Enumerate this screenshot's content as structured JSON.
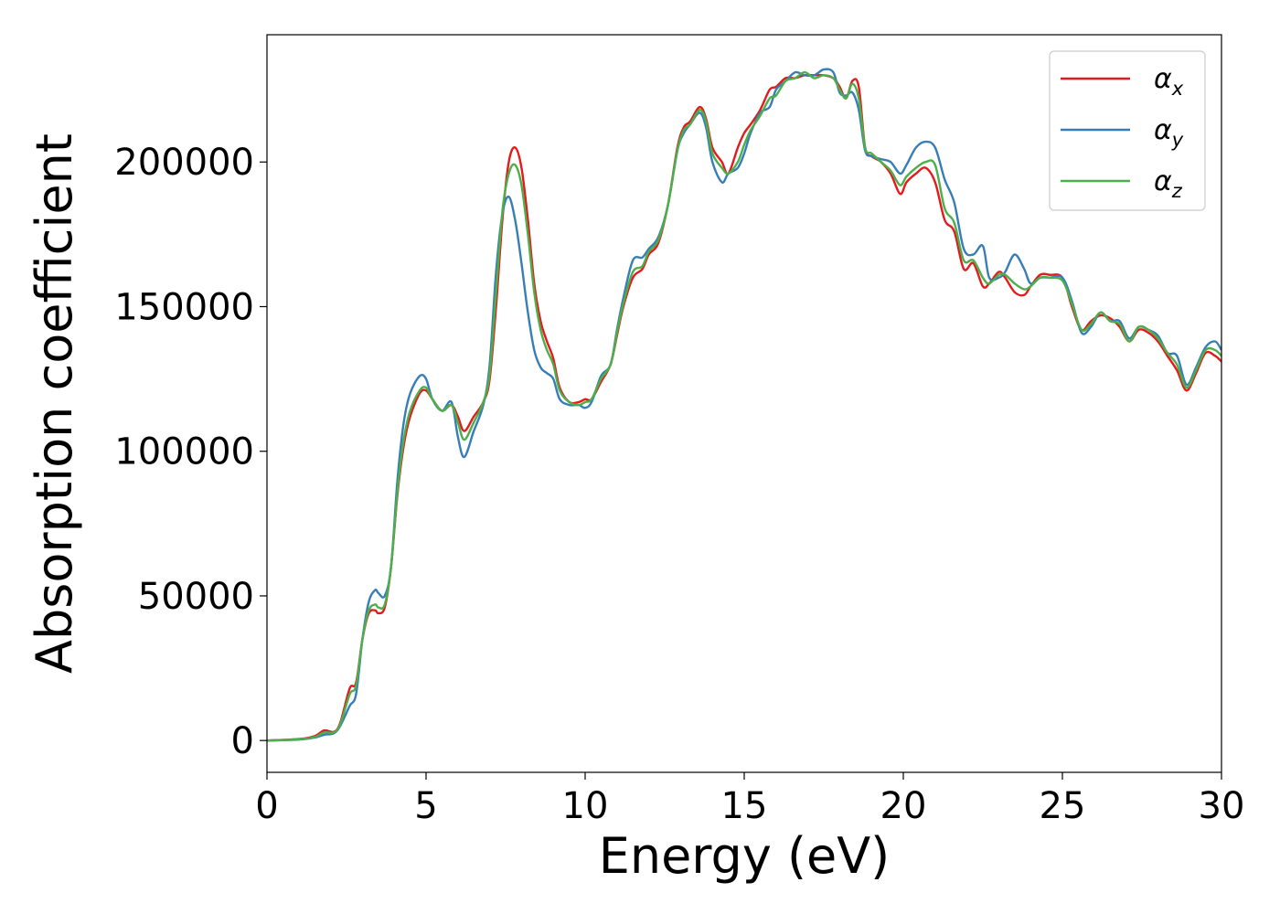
{
  "chart_data": {
    "type": "line",
    "title": "",
    "xlabel": "Energy (eV)",
    "ylabel": "Absorption coefficient",
    "xlim": [
      0,
      30
    ],
    "ylim": [
      -11000,
      244000
    ],
    "xticks": [
      0,
      5,
      10,
      15,
      20,
      25,
      30
    ],
    "yticks": [
      0,
      50000,
      100000,
      150000,
      200000
    ],
    "grid": false,
    "legend": "top-right",
    "series": [
      {
        "base": "α",
        "sub": "x",
        "color": "#e41a1c",
        "x": [
          0,
          1,
          1.5,
          1.8,
          2.1,
          2.3,
          2.6,
          2.8,
          3.0,
          3.2,
          3.4,
          3.5,
          3.7,
          3.9,
          4.1,
          4.3,
          4.5,
          4.8,
          5.0,
          5.2,
          5.5,
          5.8,
          6.0,
          6.2,
          6.5,
          6.8,
          7.0,
          7.2,
          7.4,
          7.6,
          7.8,
          8.0,
          8.2,
          8.4,
          8.6,
          8.8,
          9.0,
          9.2,
          9.5,
          9.8,
          10.0,
          10.2,
          10.5,
          10.8,
          11.0,
          11.2,
          11.5,
          11.8,
          12.0,
          12.3,
          12.6,
          12.9,
          13.1,
          13.3,
          13.6,
          13.8,
          14.0,
          14.3,
          14.5,
          14.8,
          15.0,
          15.2,
          15.5,
          15.8,
          16.0,
          16.3,
          16.6,
          16.9,
          17.2,
          17.5,
          17.8,
          18.0,
          18.2,
          18.4,
          18.6,
          18.8,
          19.0,
          19.3,
          19.6,
          19.9,
          20.1,
          20.4,
          20.7,
          21.0,
          21.3,
          21.6,
          21.9,
          22.2,
          22.5,
          22.7,
          23.0,
          23.2,
          23.5,
          23.8,
          24.0,
          24.3,
          24.6,
          25.0,
          25.3,
          25.6,
          25.9,
          26.2,
          26.5,
          26.8,
          27.1,
          27.4,
          27.7,
          28.0,
          28.3,
          28.6,
          28.9,
          29.2,
          29.5,
          29.8,
          30
        ],
        "y": [
          0,
          500,
          1500,
          3500,
          3000,
          6000,
          18000,
          20000,
          35000,
          44000,
          45000,
          44000,
          46000,
          60000,
          85000,
          102000,
          112000,
          120000,
          121000,
          118000,
          114000,
          116000,
          112000,
          107000,
          112000,
          117000,
          125000,
          150000,
          180000,
          200000,
          205000,
          198000,
          180000,
          158000,
          145000,
          138000,
          132000,
          122000,
          117000,
          117000,
          118000,
          118000,
          124000,
          130000,
          140000,
          150000,
          160000,
          163000,
          168000,
          172000,
          185000,
          205000,
          212000,
          214000,
          219000,
          215000,
          205000,
          200000,
          196000,
          205000,
          210000,
          213000,
          218000,
          225000,
          226000,
          229000,
          229000,
          230000,
          230000,
          230000,
          229000,
          226000,
          222000,
          228000,
          226000,
          205000,
          202000,
          200000,
          196000,
          189000,
          193000,
          196000,
          198000,
          193000,
          180000,
          176000,
          163000,
          165000,
          157000,
          158000,
          162000,
          160000,
          155000,
          154000,
          157000,
          161000,
          161000,
          160000,
          150000,
          142000,
          145000,
          147000,
          146000,
          143000,
          138000,
          142000,
          141000,
          138000,
          133000,
          128000,
          121000,
          127000,
          134000,
          133000,
          131000
        ]
      },
      {
        "base": "α",
        "sub": "y",
        "color": "#377eb8",
        "x": [
          0,
          1,
          1.5,
          1.8,
          2.1,
          2.3,
          2.6,
          2.8,
          3.0,
          3.2,
          3.4,
          3.5,
          3.7,
          3.9,
          4.1,
          4.3,
          4.5,
          4.8,
          5.0,
          5.2,
          5.5,
          5.8,
          6.0,
          6.2,
          6.5,
          6.8,
          7.0,
          7.2,
          7.4,
          7.6,
          7.8,
          8.0,
          8.2,
          8.4,
          8.6,
          8.8,
          9.0,
          9.2,
          9.5,
          9.8,
          10.0,
          10.2,
          10.5,
          10.8,
          11.0,
          11.2,
          11.5,
          11.8,
          12.0,
          12.3,
          12.6,
          12.9,
          13.1,
          13.3,
          13.6,
          13.8,
          14.0,
          14.3,
          14.5,
          14.8,
          15.0,
          15.2,
          15.5,
          15.8,
          16.0,
          16.3,
          16.6,
          16.9,
          17.2,
          17.5,
          17.8,
          18.0,
          18.2,
          18.4,
          18.6,
          18.8,
          19.0,
          19.3,
          19.6,
          19.9,
          20.1,
          20.4,
          20.7,
          21.0,
          21.3,
          21.6,
          21.9,
          22.2,
          22.5,
          22.7,
          23.0,
          23.2,
          23.5,
          23.8,
          24.0,
          24.3,
          24.6,
          25.0,
          25.3,
          25.6,
          25.9,
          26.2,
          26.5,
          26.8,
          27.1,
          27.4,
          27.7,
          28.0,
          28.3,
          28.6,
          28.9,
          29.2,
          29.5,
          29.8,
          30
        ],
        "y": [
          0,
          300,
          1000,
          2000,
          2500,
          5000,
          12000,
          16000,
          35000,
          48000,
          52000,
          51000,
          50000,
          60000,
          90000,
          110000,
          120000,
          126000,
          125000,
          118000,
          114000,
          117000,
          105000,
          98000,
          107000,
          116000,
          130000,
          162000,
          182000,
          188000,
          180000,
          165000,
          148000,
          135000,
          129000,
          127000,
          125000,
          118000,
          116000,
          116000,
          115000,
          117000,
          126000,
          130000,
          142000,
          153000,
          166000,
          167000,
          170000,
          174000,
          185000,
          204000,
          210000,
          213000,
          217000,
          212000,
          200000,
          193000,
          196000,
          198000,
          203000,
          210000,
          217000,
          219000,
          225000,
          228000,
          231000,
          230000,
          230000,
          232000,
          231000,
          224000,
          223000,
          224000,
          218000,
          204000,
          202000,
          201000,
          200000,
          196000,
          199000,
          205000,
          207000,
          205000,
          194000,
          186000,
          170000,
          168000,
          171000,
          160000,
          160000,
          162000,
          168000,
          163000,
          158000,
          160000,
          160000,
          160000,
          152000,
          141000,
          143000,
          148000,
          145000,
          145000,
          139000,
          143000,
          142000,
          140000,
          134000,
          133000,
          123000,
          129000,
          136000,
          138000,
          135000
        ]
      },
      {
        "base": "α",
        "sub": "z",
        "color": "#4daf4a",
        "x": [
          0,
          1,
          1.5,
          1.8,
          2.1,
          2.3,
          2.6,
          2.8,
          3.0,
          3.2,
          3.4,
          3.5,
          3.7,
          3.9,
          4.1,
          4.3,
          4.5,
          4.8,
          5.0,
          5.2,
          5.5,
          5.8,
          6.0,
          6.2,
          6.5,
          6.8,
          7.0,
          7.2,
          7.4,
          7.6,
          7.8,
          8.0,
          8.2,
          8.4,
          8.6,
          8.8,
          9.0,
          9.2,
          9.5,
          9.8,
          10.0,
          10.2,
          10.5,
          10.8,
          11.0,
          11.2,
          11.5,
          11.8,
          12.0,
          12.3,
          12.6,
          12.9,
          13.1,
          13.3,
          13.6,
          13.8,
          14.0,
          14.3,
          14.5,
          14.8,
          15.0,
          15.2,
          15.5,
          15.8,
          16.0,
          16.3,
          16.6,
          16.9,
          17.2,
          17.5,
          17.8,
          18.0,
          18.2,
          18.4,
          18.6,
          18.8,
          19.0,
          19.3,
          19.6,
          19.9,
          20.1,
          20.4,
          20.7,
          21.0,
          21.3,
          21.6,
          21.9,
          22.2,
          22.5,
          22.7,
          23.0,
          23.2,
          23.5,
          23.8,
          24.0,
          24.3,
          24.6,
          25.0,
          25.3,
          25.6,
          25.9,
          26.2,
          26.5,
          26.8,
          27.1,
          27.4,
          27.7,
          28.0,
          28.3,
          28.6,
          28.9,
          29.2,
          29.5,
          29.8,
          30
        ],
        "y": [
          0,
          400,
          1200,
          2800,
          2800,
          5500,
          16000,
          19000,
          35000,
          45000,
          47000,
          46000,
          47000,
          60000,
          86000,
          104000,
          114000,
          121000,
          122000,
          118000,
          114000,
          116000,
          110000,
          104000,
          110000,
          117000,
          127000,
          155000,
          183000,
          196000,
          199000,
          192000,
          175000,
          155000,
          142000,
          135000,
          130000,
          121000,
          117000,
          116000,
          117000,
          118000,
          125000,
          130000,
          141000,
          151000,
          162000,
          164000,
          169000,
          173000,
          185000,
          204000,
          211000,
          213000,
          218000,
          214000,
          203000,
          198000,
          196000,
          200000,
          206000,
          211000,
          216000,
          222000,
          223000,
          228000,
          229000,
          231000,
          229000,
          230000,
          229000,
          225000,
          222000,
          227000,
          222000,
          205000,
          203000,
          200000,
          197000,
          192000,
          195000,
          198000,
          200000,
          199000,
          184000,
          179000,
          166000,
          166000,
          160000,
          158000,
          161000,
          161000,
          158000,
          156000,
          157000,
          160000,
          160000,
          159000,
          151000,
          142000,
          144000,
          148000,
          145000,
          144000,
          138000,
          143000,
          142000,
          139000,
          134000,
          130000,
          122000,
          128000,
          135000,
          135000,
          133000
        ]
      }
    ]
  }
}
